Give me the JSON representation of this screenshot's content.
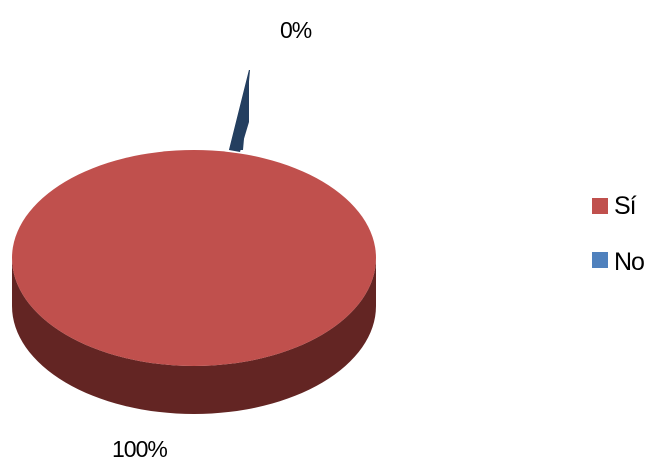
{
  "chart_data": {
    "type": "pie",
    "style": "3d-exploded",
    "title": "",
    "categories": [
      "Sí",
      "No"
    ],
    "values": [
      100,
      0
    ],
    "value_labels": [
      "100%",
      "0%"
    ],
    "colors": {
      "Sí": {
        "top": "#C0504D",
        "side": "#632523"
      },
      "No": {
        "top": "#4F81BD",
        "side": "#243F60"
      }
    },
    "legend": {
      "position": "right",
      "items": [
        {
          "label": "Sí",
          "color": "#C0504D"
        },
        {
          "label": "No",
          "color": "#4F81BD"
        }
      ]
    }
  }
}
